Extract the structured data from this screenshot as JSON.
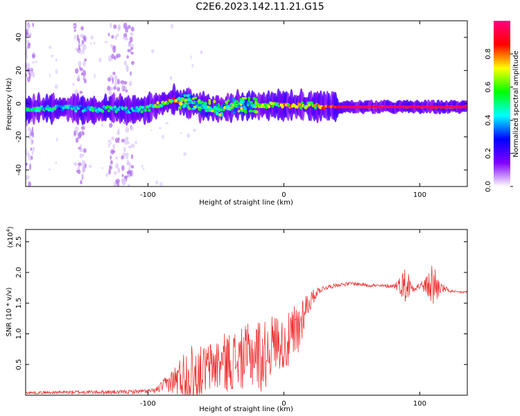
{
  "title": "C2E6.2023.142.11.21.G15",
  "chart_data": [
    {
      "type": "heatmap",
      "xlabel": "Height of straight line (km)",
      "ylabel": "Frequency (Hz)",
      "xlim": [
        -190,
        135
      ],
      "ylim": [
        -50,
        50
      ],
      "xticks": [
        -100,
        0,
        100
      ],
      "yticks": [
        -40,
        -20,
        0,
        20,
        40
      ],
      "colorbar": {
        "label": "Normalized spectral amplitude",
        "range": [
          0,
          1
        ],
        "ticks": [
          "0.0",
          "0.2",
          "0.4",
          "0.6",
          "0.8"
        ],
        "colors": [
          "#ffffff",
          "#8000ff",
          "#0000ff",
          "#00ffff",
          "#00ff00",
          "#ffff00",
          "#ff0000",
          "#ff0080"
        ]
      },
      "ridge": {
        "x": [
          -190,
          -170,
          -150,
          -140,
          -130,
          -110,
          -100,
          -90,
          -80,
          -70,
          -60,
          -50,
          -40,
          -30,
          -20,
          -10,
          0,
          20,
          40,
          60,
          80,
          100,
          135
        ],
        "frequency": [
          -3,
          -3,
          -3,
          -4,
          -3,
          -4,
          -3,
          0,
          2,
          1,
          -2,
          -3,
          -2,
          -1,
          -1,
          -1,
          -1,
          -1,
          -2,
          -2,
          -2,
          -2,
          -2
        ],
        "amplitude": [
          0.5,
          0.5,
          0.45,
          0.6,
          0.55,
          0.45,
          0.55,
          0.7,
          0.85,
          0.65,
          0.5,
          0.5,
          0.5,
          0.5,
          0.6,
          0.7,
          0.8,
          0.85,
          0.9,
          0.92,
          0.9,
          0.9,
          0.92
        ]
      },
      "vertical_bands_x": [
        -188,
        -150,
        -125,
        -115
      ]
    },
    {
      "type": "line",
      "xlabel": "Height of straight line (km)",
      "ylabel": "SNR (10 * v/v)",
      "y_multiplier": "(x10",
      "y_multiplier_exp": "4",
      "y_multiplier_close": ")",
      "xlim": [
        -190,
        135
      ],
      "ylim": [
        0,
        27000
      ],
      "xticks": [
        -100,
        0,
        100
      ],
      "yticks": [
        "0.5",
        "1.0",
        "1.5",
        "2.0",
        "2.5"
      ],
      "ytick_values": [
        5000,
        10000,
        15000,
        20000,
        25000
      ],
      "series": [
        {
          "color": "#ee3333",
          "envelope_x": [
            -190,
            -150,
            -120,
            -95,
            -85,
            -80,
            -75,
            -70,
            -60,
            -50,
            -40,
            -30,
            -20,
            -15,
            -10,
            -5,
            0,
            5,
            10,
            15,
            20,
            25,
            30,
            40,
            50,
            60,
            70,
            80,
            85,
            90,
            95,
            100,
            105,
            110,
            115,
            120,
            125,
            135
          ],
          "envelope_mid": [
            400,
            500,
            500,
            700,
            2000,
            2500,
            3000,
            3500,
            4000,
            5000,
            5500,
            6000,
            7000,
            6000,
            8000,
            9000,
            8000,
            9000,
            10000,
            14000,
            15500,
            17000,
            17500,
            18000,
            18200,
            18000,
            17800,
            17800,
            18000,
            18000,
            17500,
            17800,
            17800,
            18000,
            17500,
            17200,
            16800,
            16800
          ],
          "envelope_amp": [
            200,
            300,
            300,
            400,
            1500,
            2500,
            4000,
            5000,
            4000,
            4500,
            5000,
            5000,
            6000,
            6000,
            5000,
            4500,
            4000,
            5000,
            6000,
            3000,
            1500,
            600,
            400,
            300,
            300,
            300,
            300,
            300,
            1200,
            3500,
            600,
            700,
            1500,
            4500,
            1000,
            400,
            200,
            200
          ]
        }
      ]
    }
  ]
}
